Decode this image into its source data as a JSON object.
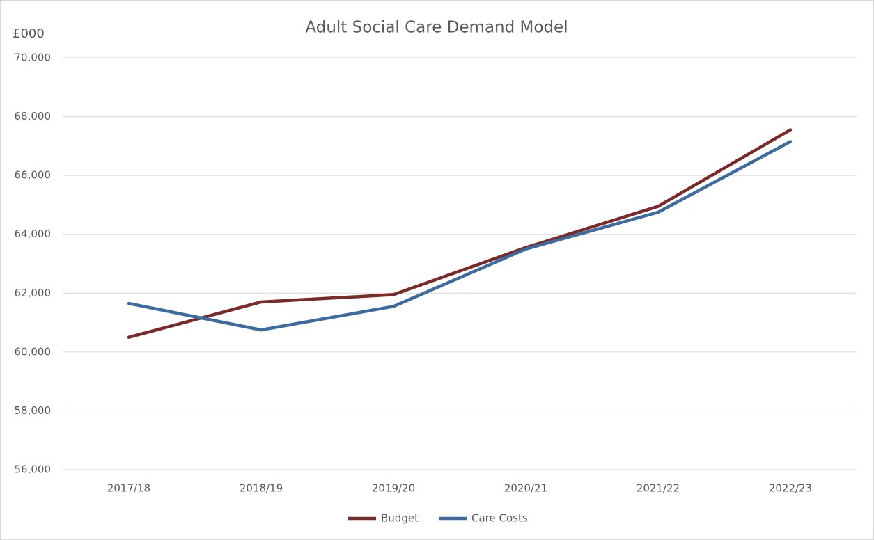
{
  "chart_data": {
    "type": "line",
    "title": "Adult Social Care Demand Model",
    "y_label": "£000",
    "categories": [
      "2017/18",
      "2018/19",
      "2019/20",
      "2020/21",
      "2021/22",
      "2022/23"
    ],
    "series": [
      {
        "name": "Budget",
        "color": "#7a2a2a",
        "values": [
          60500,
          61700,
          61950,
          63550,
          64950,
          67550
        ]
      },
      {
        "name": "Care Costs",
        "color": "#3e6b9f",
        "values": [
          61650,
          60750,
          61550,
          63500,
          64750,
          67150
        ]
      }
    ],
    "ylim": [
      56000,
      70000
    ],
    "yticks": [
      {
        "value": 56000,
        "label": "56,000"
      },
      {
        "value": 58000,
        "label": "58,000"
      },
      {
        "value": 60000,
        "label": "60,000"
      },
      {
        "value": 62000,
        "label": "62,000"
      },
      {
        "value": 64000,
        "label": "64,000"
      },
      {
        "value": 66000,
        "label": "66,000"
      },
      {
        "value": 68000,
        "label": "68,000"
      },
      {
        "value": 70000,
        "label": "70,000"
      }
    ],
    "grid": true,
    "legend": "bottom"
  }
}
